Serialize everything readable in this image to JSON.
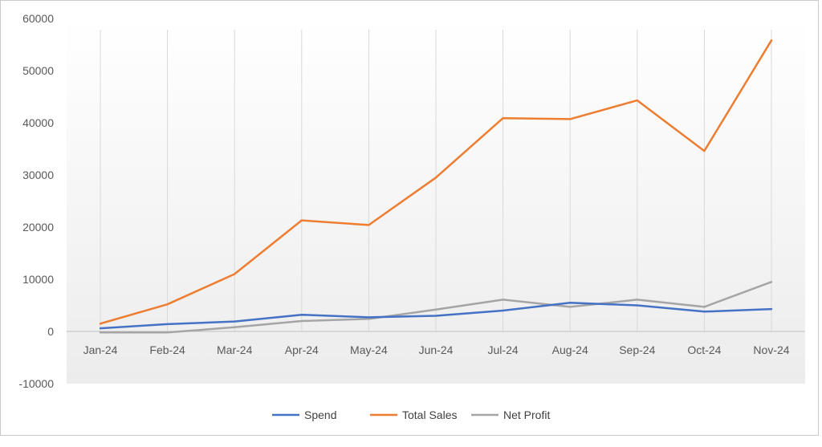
{
  "chart_data": {
    "type": "line",
    "title": "",
    "xlabel": "",
    "ylabel": "",
    "categories": [
      "Jan-24",
      "Feb-24",
      "Mar-24",
      "Apr-24",
      "May-24",
      "Jun-24",
      "Jul-24",
      "Aug-24",
      "Sep-24",
      "Oct-24",
      "Nov-24"
    ],
    "ylim": [
      -10000,
      60000
    ],
    "yticks": [
      60000,
      50000,
      40000,
      30000,
      20000,
      10000,
      0,
      -10000
    ],
    "vertical_gridlines": true,
    "horizontal_gridlines": false,
    "legend_position": "bottom",
    "series": [
      {
        "name": "Spend",
        "color": "#4472c4",
        "values": [
          600,
          1400,
          1900,
          3200,
          2700,
          3000,
          4000,
          5500,
          5000,
          3800,
          4300
        ]
      },
      {
        "name": "Total Sales",
        "color": "#ed7d31",
        "values": [
          1500,
          5200,
          11000,
          21300,
          20400,
          29500,
          40900,
          40700,
          44300,
          34600,
          55800
        ]
      },
      {
        "name": "Net Profit",
        "color": "#a5a5a5",
        "values": [
          -200,
          -200,
          800,
          2000,
          2400,
          4200,
          6100,
          4700,
          6100,
          4700,
          9500
        ]
      }
    ]
  }
}
